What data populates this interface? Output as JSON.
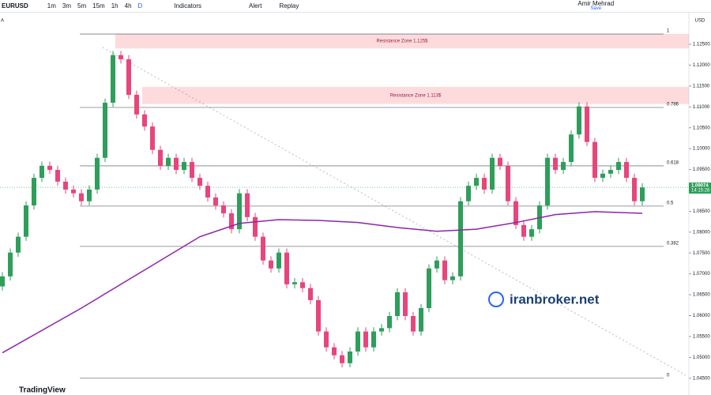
{
  "toolbar": {
    "symbol": "EURUSD",
    "intervals": [
      "1m",
      "3m",
      "5m",
      "15m",
      "1h",
      "4h",
      "D"
    ],
    "indicators": "Indicators",
    "alert": "Alert",
    "replay": "Replay",
    "user": "Amir Mehrad",
    "save": "Save"
  },
  "side_label": "A",
  "brand": "TradingView",
  "watermark": "iranbroker.net",
  "chart_data": {
    "type": "candlestick",
    "currency": "USD",
    "up_color": "#2e9e5b",
    "down_color": "#e8457a",
    "ma_color": "#8e24aa",
    "ylim": [
      1.0442,
      1.1322
    ],
    "yticks": [
      {
        "value": 1.045,
        "label": "1.04500"
      },
      {
        "value": 1.05,
        "label": "1.05000"
      },
      {
        "value": 1.055,
        "label": "1.05500"
      },
      {
        "value": 1.06,
        "label": "1.06000"
      },
      {
        "value": 1.065,
        "label": "1.06500"
      },
      {
        "value": 1.07,
        "label": "1.07000"
      },
      {
        "value": 1.075,
        "label": "1.07500"
      },
      {
        "value": 1.08,
        "label": "1.08000"
      },
      {
        "value": 1.085,
        "label": "1.08500"
      },
      {
        "value": 1.09,
        "label": "1.09000"
      },
      {
        "value": 1.095,
        "label": "1.09500"
      },
      {
        "value": 1.1,
        "label": "1.10000"
      },
      {
        "value": 1.105,
        "label": "1.10500"
      },
      {
        "value": 1.11,
        "label": "1.11000"
      },
      {
        "value": 1.115,
        "label": "1.11500"
      },
      {
        "value": 1.12,
        "label": "1.12000"
      },
      {
        "value": 1.125,
        "label": "1.12500"
      }
    ],
    "open": [
      1.067,
      1.0694,
      1.0751,
      1.0789,
      1.0864,
      1.093,
      1.0959,
      1.0949,
      1.0921,
      1.0902,
      1.0893,
      1.0874,
      1.0902,
      1.0978,
      1.111,
      1.1224,
      1.1214,
      1.1129,
      1.1082,
      1.1053,
      1.0997,
      1.0959,
      1.0978,
      1.0949,
      1.0968,
      1.093,
      1.0911,
      1.0883,
      1.0864,
      1.0845,
      1.0807,
      1.0893,
      1.0836,
      1.0789,
      1.0732,
      1.0713,
      1.0751,
      1.0675,
      1.068,
      1.0666,
      1.0637,
      1.0562,
      1.0524,
      1.0505,
      1.0486,
      1.0514,
      1.0562,
      1.0524,
      1.0562,
      1.057,
      1.0599,
      1.0656,
      1.0599,
      1.0562,
      1.0618,
      1.0713,
      1.0732,
      1.0685,
      1.0694,
      1.0874,
      1.0911,
      1.093,
      1.0902,
      1.0978,
      1.0959,
      1.0874,
      1.0817,
      1.0789,
      1.0807,
      1.0864,
      1.0978,
      1.0949,
      1.0968,
      1.1034,
      1.1101,
      1.1016,
      1.093,
      1.094,
      1.0949,
      1.0968,
      1.093,
      1.0874
    ],
    "high": [
      1.0704,
      1.0761,
      1.0799,
      1.0874,
      1.094,
      1.0969,
      1.0969,
      1.0959,
      1.0931,
      1.0912,
      1.0903,
      1.0912,
      1.0988,
      1.112,
      1.1234,
      1.1234,
      1.1224,
      1.1139,
      1.1092,
      1.1063,
      1.1007,
      1.0988,
      1.0988,
      1.0978,
      1.0978,
      1.094,
      1.0921,
      1.0893,
      1.0874,
      1.0855,
      1.0903,
      1.0903,
      1.0846,
      1.0799,
      1.0742,
      1.0761,
      1.0761,
      1.069,
      1.069,
      1.0676,
      1.0647,
      1.0572,
      1.0534,
      1.0515,
      1.0524,
      1.0572,
      1.0572,
      1.0572,
      1.058,
      1.0609,
      1.0666,
      1.0666,
      1.0609,
      1.0628,
      1.0723,
      1.0742,
      1.0742,
      1.0704,
      1.0884,
      1.0921,
      1.094,
      1.094,
      1.0988,
      1.0988,
      1.0969,
      1.0884,
      1.0827,
      1.0817,
      1.0874,
      1.0988,
      1.0988,
      1.0978,
      1.1044,
      1.1111,
      1.1111,
      1.1026,
      1.095,
      1.0959,
      1.0978,
      1.0978,
      1.094,
      1.0917
    ],
    "low": [
      1.066,
      1.0684,
      1.0741,
      1.0779,
      1.0854,
      1.092,
      1.0939,
      1.0911,
      1.0892,
      1.0883,
      1.0864,
      1.0864,
      1.0892,
      1.0968,
      1.11,
      1.1204,
      1.1119,
      1.1072,
      1.1043,
      1.0987,
      1.0949,
      1.0949,
      1.0939,
      1.0939,
      1.092,
      1.0901,
      1.0873,
      1.0854,
      1.0835,
      1.0797,
      1.0797,
      1.0826,
      1.0779,
      1.0722,
      1.0703,
      1.0703,
      1.0665,
      1.0665,
      1.0656,
      1.0627,
      1.0552,
      1.0514,
      1.0495,
      1.0476,
      1.0476,
      1.0504,
      1.0514,
      1.0514,
      1.0552,
      1.056,
      1.0589,
      1.0589,
      1.0552,
      1.0552,
      1.0608,
      1.0703,
      1.0675,
      1.0675,
      1.0684,
      1.0864,
      1.0901,
      1.0892,
      1.0892,
      1.0949,
      1.0864,
      1.0807,
      1.0779,
      1.0779,
      1.0797,
      1.0854,
      1.0939,
      1.0939,
      1.0958,
      1.1024,
      1.1006,
      1.092,
      1.092,
      1.093,
      1.0939,
      1.092,
      1.0864,
      1.0864
    ],
    "close": [
      1.0694,
      1.0751,
      1.0789,
      1.0864,
      1.093,
      1.0959,
      1.0949,
      1.0921,
      1.0902,
      1.0893,
      1.0874,
      1.0902,
      1.0978,
      1.111,
      1.1224,
      1.1214,
      1.1129,
      1.1082,
      1.1053,
      1.0997,
      1.0959,
      1.0978,
      1.0949,
      1.0968,
      1.093,
      1.0911,
      1.0883,
      1.0864,
      1.0845,
      1.0807,
      1.0893,
      1.0836,
      1.0789,
      1.0732,
      1.0713,
      1.0751,
      1.0675,
      1.068,
      1.0666,
      1.0637,
      1.0562,
      1.0524,
      1.0505,
      1.0486,
      1.0514,
      1.0562,
      1.0524,
      1.0562,
      1.057,
      1.0599,
      1.0656,
      1.0599,
      1.0562,
      1.0618,
      1.0713,
      1.0732,
      1.0685,
      1.0694,
      1.0874,
      1.0911,
      1.093,
      1.0902,
      1.0978,
      1.0959,
      1.0874,
      1.0817,
      1.0789,
      1.0807,
      1.0864,
      1.0978,
      1.0949,
      1.0968,
      1.1034,
      1.1101,
      1.1016,
      1.093,
      1.094,
      1.0949,
      1.0968,
      1.093,
      1.0874,
      1.0907
    ],
    "ma_x": [
      0,
      10,
      20,
      25,
      30,
      35,
      40,
      45,
      50,
      55,
      60,
      65,
      70,
      75,
      81
    ],
    "ma_values": [
      1.0511,
      1.0618,
      1.0732,
      1.0789,
      1.0821,
      1.083,
      1.0828,
      1.0823,
      1.0811,
      1.0802,
      1.0807,
      1.0823,
      1.0842,
      1.0849,
      1.0845
    ],
    "fib_levels": [
      {
        "ratio": "1",
        "price": 1.12746
      },
      {
        "ratio": "0.786",
        "price": 1.10987
      },
      {
        "ratio": "0.618",
        "price": 1.09588
      },
      {
        "ratio": "0.5",
        "price": 1.08623
      },
      {
        "ratio": "0.382",
        "price": 1.07658
      },
      {
        "ratio": "0",
        "price": 1.045
      }
    ],
    "zones": [
      {
        "label": "Resistance Zone 1.125$",
        "top": 1.1275,
        "bottom": 1.124
      },
      {
        "label": "Resistance Zone 1.113$",
        "top": 1.1148,
        "bottom": 1.1107
      }
    ],
    "last_price": {
      "value": 1.09074,
      "label": "1.09074",
      "countdown": "14:15:28"
    }
  }
}
